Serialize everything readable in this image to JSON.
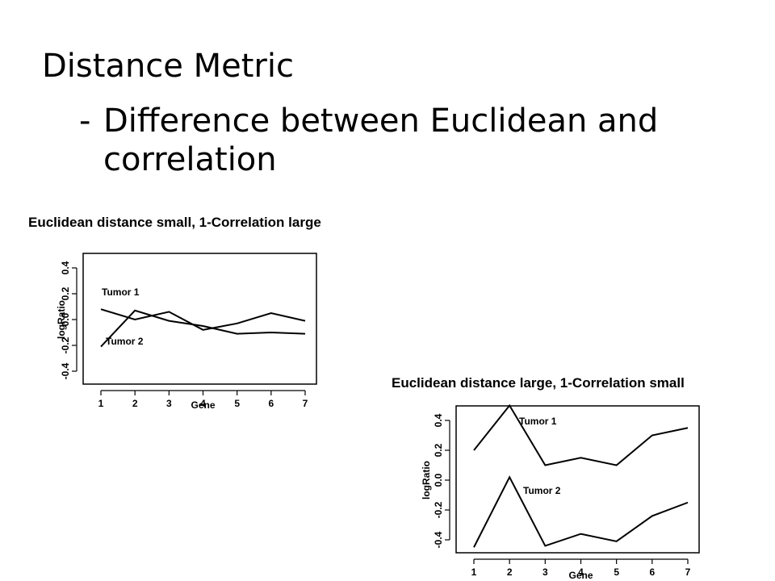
{
  "slide": {
    "title": "Distance Metric",
    "subtitle_dash": "-",
    "subtitle": "Difference between Euclidean and correlation"
  },
  "chart_data": [
    {
      "type": "line",
      "title": "Euclidean distance small, 1-Correlation large",
      "xlabel": "Gene",
      "ylabel": "logRatio",
      "x": [
        1,
        2,
        3,
        4,
        5,
        6,
        7
      ],
      "xlim": [
        1,
        7
      ],
      "ylim": [
        -0.4,
        0.4
      ],
      "yticks": [
        -0.4,
        -0.2,
        0.0,
        0.2,
        0.4
      ],
      "ytick_labels": [
        "-0.4",
        "-0.2",
        "0.0",
        "0.2",
        "0.4"
      ],
      "xtick_labels": [
        "1",
        "2",
        "3",
        "4",
        "5",
        "6",
        "7"
      ],
      "grid": false,
      "series": [
        {
          "name": "Tumor 1",
          "values": [
            0.08,
            0.0,
            0.06,
            -0.08,
            -0.03,
            0.05,
            -0.01
          ]
        },
        {
          "name": "Tumor 2",
          "values": [
            -0.21,
            0.07,
            -0.01,
            -0.05,
            -0.11,
            -0.1,
            -0.11
          ]
        }
      ]
    },
    {
      "type": "line",
      "title": "Euclidean distance large, 1-Correlation small",
      "xlabel": "Gene",
      "ylabel": "logRatio",
      "x": [
        1,
        2,
        3,
        4,
        5,
        6,
        7
      ],
      "xlim": [
        1,
        7
      ],
      "ylim": [
        -0.4,
        0.4
      ],
      "yticks": [
        -0.4,
        -0.2,
        0.0,
        0.2,
        0.4
      ],
      "ytick_labels": [
        "-0.4",
        "-0.2",
        "0.0",
        "0.2",
        "0.4"
      ],
      "xtick_labels": [
        "1",
        "2",
        "3",
        "4",
        "5",
        "6",
        "7"
      ],
      "grid": false,
      "series": [
        {
          "name": "Tumor 1",
          "values": [
            0.2,
            0.5,
            0.1,
            0.15,
            0.1,
            0.3,
            0.35
          ]
        },
        {
          "name": "Tumor 2",
          "values": [
            -0.45,
            0.02,
            -0.44,
            -0.36,
            -0.41,
            -0.24,
            -0.15
          ]
        }
      ]
    }
  ]
}
